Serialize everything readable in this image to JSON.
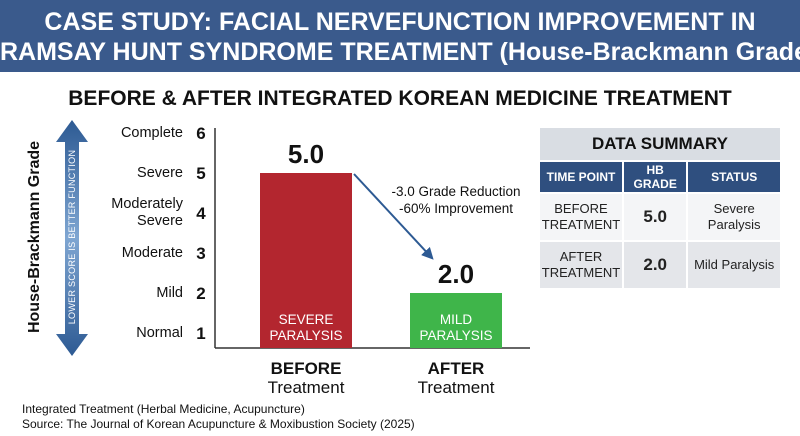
{
  "chart_data": {
    "type": "bar",
    "title_lines": [
      "CASE STUDY: FACIAL NERVEFUNCTION IMPROVEMENT IN",
      "RAMSAY HUNT SYNDROME TREATMENT (House-Brackmann Grade)"
    ],
    "subtitle": "BEFORE & AFTER INTEGRATED KOREAN MEDICINE TREATMENT",
    "y_label": "House-Brackmann Grade",
    "arrow_note": "LOWER SCORE IS BETTER FUNCTION",
    "categories": [
      "BEFORE",
      "AFTER"
    ],
    "category_sublabels": [
      "Treatment",
      "Treatment"
    ],
    "values": [
      5.0,
      2.0
    ],
    "value_labels": [
      "5.0",
      "2.0"
    ],
    "bar_labels": [
      "SEVERE PARALYSIS",
      "MILD PARALYSIS"
    ],
    "colors": [
      "#b3262f",
      "#3fb54a"
    ],
    "ylim": [
      0.625,
      6
    ],
    "yticks": [
      1,
      2,
      3,
      4,
      5,
      6
    ],
    "ytick_names": [
      "Normal",
      "Mild",
      "Moderate",
      "Moderately Severe",
      "Severe",
      "Complete"
    ],
    "grid": false,
    "annotations": [
      "-3.0 Grade Reduction",
      "-60% Improvement"
    ],
    "footnotes": [
      "Integrated Treatment (Herbal Medicine, Acupuncture)",
      "Source: The Journal of Korean Acupuncture & Moxibustion Society (2025)"
    ]
  },
  "table": {
    "title": "DATA SUMMARY",
    "header": [
      "TIME POINT",
      "HB GRADE",
      "STATUS"
    ],
    "rows": [
      [
        "BEFORE TREATMENT",
        "5.0",
        "Severe Paralysis"
      ],
      [
        "AFTER TREATMENT",
        "2.0",
        "Mild Paralysis"
      ]
    ]
  }
}
